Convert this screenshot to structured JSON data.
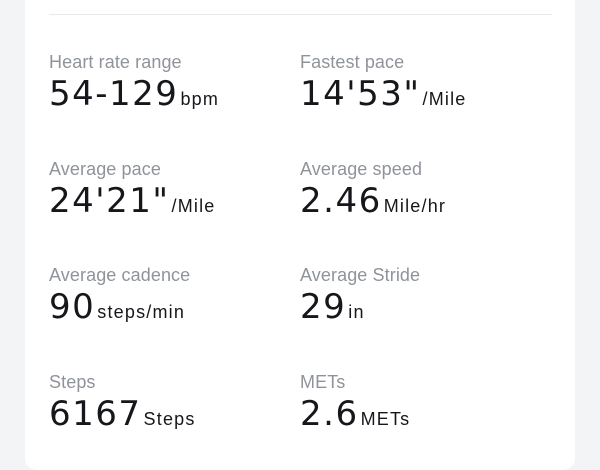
{
  "stats": [
    {
      "label": "Heart rate range",
      "value": "54-129",
      "unit": "bpm"
    },
    {
      "label": "Fastest pace",
      "value": "14'53\"",
      "unit": "/Mile"
    },
    {
      "label": "Average pace",
      "value": "24'21\"",
      "unit": "/Mile"
    },
    {
      "label": "Average speed",
      "value": "2.46",
      "unit": "Mile/hr"
    },
    {
      "label": "Average cadence",
      "value": "90",
      "unit": "steps/min"
    },
    {
      "label": "Average Stride",
      "value": "29",
      "unit": "in"
    },
    {
      "label": "Steps",
      "value": "6167",
      "unit": "Steps"
    },
    {
      "label": "METs",
      "value": "2.6",
      "unit": "METs"
    }
  ]
}
